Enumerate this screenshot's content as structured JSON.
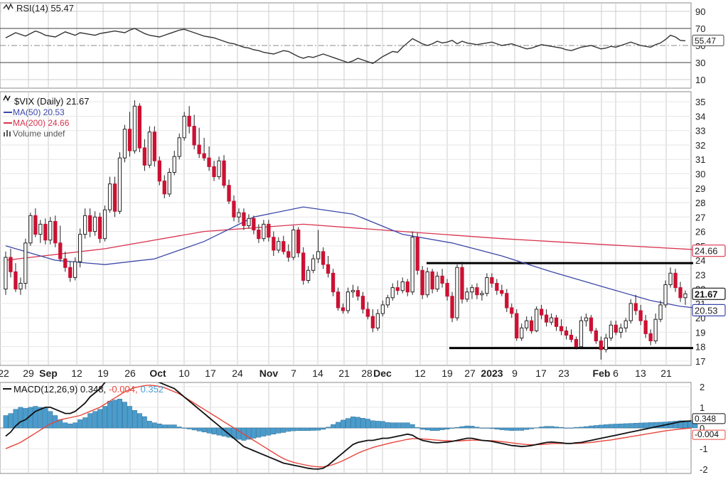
{
  "colors": {
    "up": "#ffffff",
    "down": "#cc1133",
    "ma50": "#3b47a8",
    "ma200": "#d9334f",
    "rsi": "#333333",
    "macd": "#111111",
    "signal": "#e8453c",
    "hist": "#4a9ccc",
    "grid": "#cccccc"
  },
  "rsi_panel": {
    "label": "RSI(14) 55.47",
    "last_label": "55.47",
    "ticks": [
      "90",
      "70",
      "50",
      "30",
      "10"
    ]
  },
  "price_panel": {
    "title": "$VIX (Daily) 21.67",
    "legend": [
      {
        "key": "ma50",
        "label": "MA(50) 20.53",
        "color": "#3b47a8"
      },
      {
        "key": "ma200",
        "label": "MA(200) 24.66",
        "color": "#d9334f"
      },
      {
        "key": "vol",
        "label": "Volume undef",
        "color": "#555555"
      }
    ],
    "last_price_label": "21.67",
    "ma200_label": "24.66",
    "ma50_label": "20.53",
    "ticks": [
      "35",
      "34",
      "33",
      "32",
      "31",
      "30",
      "29",
      "28",
      "27",
      "26",
      "25",
      "24",
      "23",
      "22",
      "21",
      "20",
      "19",
      "18",
      "17"
    ]
  },
  "macd_panel": {
    "label_prefix": "MACD(12,26,9) 0.348,",
    "label_signal": "-0.004,",
    "label_hist": "0.352",
    "last_macd_label": "0.348",
    "last_signal_label": "-0.004",
    "ticks": [
      "2",
      "1",
      "0",
      "-1",
      "-2"
    ]
  },
  "x_axis": {
    "labels": [
      {
        "text": "22",
        "bold": false
      },
      {
        "text": "29",
        "bold": false
      },
      {
        "text": "Sep",
        "bold": true
      },
      {
        "text": "12",
        "bold": false
      },
      {
        "text": "19",
        "bold": false
      },
      {
        "text": "26",
        "bold": false
      },
      {
        "text": "Oct",
        "bold": true
      },
      {
        "text": "10",
        "bold": false
      },
      {
        "text": "17",
        "bold": false
      },
      {
        "text": "24",
        "bold": false
      },
      {
        "text": "Nov",
        "bold": true
      },
      {
        "text": "7",
        "bold": false
      },
      {
        "text": "14",
        "bold": false
      },
      {
        "text": "21",
        "bold": false
      },
      {
        "text": "28",
        "bold": false
      },
      {
        "text": "Dec",
        "bold": true
      },
      {
        "text": "12",
        "bold": false
      },
      {
        "text": "19",
        "bold": false
      },
      {
        "text": "27",
        "bold": false
      },
      {
        "text": "2023",
        "bold": true
      },
      {
        "text": "9",
        "bold": false
      },
      {
        "text": "17",
        "bold": false
      },
      {
        "text": "23",
        "bold": false
      },
      {
        "text": "Feb",
        "bold": true
      },
      {
        "text": "6",
        "bold": false
      },
      {
        "text": "13",
        "bold": false
      },
      {
        "text": "21",
        "bold": false
      }
    ]
  },
  "chart_data": {
    "type": "candlestick",
    "title": "$VIX (Daily) 21.67",
    "y_range_price": [
      16.7,
      35.7
    ],
    "price_support_resistance": [
      {
        "level": 23.8,
        "from_date": "Dec 13",
        "to_date": "Feb 24"
      },
      {
        "level": 17.9,
        "from_date": "Dec 22",
        "to_date": "Feb 24"
      }
    ],
    "ohlc": [
      [
        22.0,
        24.6,
        21.6,
        24.2
      ],
      [
        24.2,
        24.8,
        22.8,
        23.2
      ],
      [
        23.2,
        23.8,
        21.8,
        22.0
      ],
      [
        22.0,
        22.8,
        21.6,
        22.4
      ],
      [
        22.4,
        25.5,
        22.0,
        25.2
      ],
      [
        25.2,
        27.3,
        25.0,
        27.1
      ],
      [
        27.1,
        27.6,
        25.6,
        25.8
      ],
      [
        25.8,
        26.8,
        25.2,
        26.5
      ],
      [
        26.5,
        26.9,
        25.1,
        25.4
      ],
      [
        25.4,
        27.0,
        25.1,
        26.7
      ],
      [
        26.7,
        27.1,
        24.9,
        25.2
      ],
      [
        25.2,
        26.4,
        23.9,
        24.1
      ],
      [
        24.1,
        24.6,
        23.2,
        23.5
      ],
      [
        23.5,
        23.9,
        22.5,
        22.8
      ],
      [
        22.8,
        24.2,
        22.6,
        23.9
      ],
      [
        23.9,
        26.2,
        23.5,
        25.8
      ],
      [
        25.8,
        27.6,
        25.5,
        27.1
      ],
      [
        27.1,
        27.6,
        25.6,
        26.0
      ],
      [
        26.0,
        27.4,
        25.7,
        27.0
      ],
      [
        27.0,
        27.3,
        25.2,
        25.5
      ],
      [
        25.5,
        27.8,
        25.3,
        27.5
      ],
      [
        27.5,
        29.8,
        27.3,
        29.3
      ],
      [
        29.3,
        29.8,
        27.0,
        27.4
      ],
      [
        27.4,
        31.5,
        27.2,
        31.1
      ],
      [
        31.1,
        33.4,
        30.8,
        33.1
      ],
      [
        33.1,
        34.3,
        31.2,
        31.6
      ],
      [
        31.6,
        35.1,
        31.4,
        34.7
      ],
      [
        34.7,
        34.9,
        31.5,
        31.8
      ],
      [
        31.8,
        32.4,
        30.2,
        30.6
      ],
      [
        30.6,
        33.3,
        30.4,
        32.9
      ],
      [
        32.9,
        33.3,
        30.5,
        30.9
      ],
      [
        30.9,
        31.2,
        29.2,
        29.5
      ],
      [
        29.5,
        29.9,
        28.3,
        28.6
      ],
      [
        28.6,
        30.4,
        28.4,
        30.1
      ],
      [
        30.1,
        31.6,
        29.9,
        31.2
      ],
      [
        31.2,
        32.8,
        31.0,
        32.5
      ],
      [
        32.5,
        34.3,
        32.3,
        34.0
      ],
      [
        34.0,
        34.7,
        32.8,
        33.3
      ],
      [
        33.3,
        34.1,
        31.7,
        32.0
      ],
      [
        32.0,
        33.2,
        31.1,
        31.4
      ],
      [
        31.4,
        32.5,
        30.9,
        31.1
      ],
      [
        31.1,
        31.9,
        30.2,
        30.5
      ],
      [
        30.5,
        30.9,
        29.5,
        29.8
      ],
      [
        29.8,
        31.2,
        29.6,
        30.9
      ],
      [
        30.9,
        31.3,
        29.0,
        29.2
      ],
      [
        29.2,
        29.6,
        27.9,
        28.1
      ],
      [
        28.1,
        28.5,
        26.7,
        27.0
      ],
      [
        27.0,
        27.6,
        26.6,
        27.3
      ],
      [
        27.3,
        27.6,
        26.1,
        26.4
      ],
      [
        26.4,
        27.2,
        26.2,
        26.9
      ],
      [
        26.9,
        27.1,
        25.8,
        26.1
      ],
      [
        26.1,
        26.5,
        25.2,
        25.5
      ],
      [
        25.5,
        26.8,
        25.3,
        26.5
      ],
      [
        26.5,
        26.8,
        25.3,
        25.6
      ],
      [
        25.6,
        26.0,
        24.3,
        24.7
      ],
      [
        24.7,
        25.6,
        24.5,
        25.3
      ],
      [
        25.3,
        25.7,
        24.4,
        24.6
      ],
      [
        24.6,
        25.1,
        23.9,
        24.2
      ],
      [
        24.2,
        26.4,
        24.0,
        26.1
      ],
      [
        26.1,
        26.3,
        24.2,
        24.5
      ],
      [
        24.5,
        24.9,
        22.3,
        22.6
      ],
      [
        22.6,
        23.6,
        22.4,
        23.3
      ],
      [
        23.3,
        24.4,
        23.1,
        24.1
      ],
      [
        24.1,
        26.1,
        23.8,
        24.6
      ],
      [
        24.6,
        24.9,
        23.4,
        23.7
      ],
      [
        23.7,
        24.3,
        22.8,
        23.1
      ],
      [
        23.1,
        23.4,
        21.5,
        21.8
      ],
      [
        21.8,
        22.1,
        20.5,
        20.7
      ],
      [
        20.7,
        21.0,
        20.3,
        20.5
      ],
      [
        20.5,
        22.1,
        20.3,
        21.8
      ],
      [
        21.8,
        22.3,
        21.4,
        21.9
      ],
      [
        21.9,
        22.2,
        21.2,
        21.5
      ],
      [
        21.5,
        21.8,
        20.3,
        20.6
      ],
      [
        20.6,
        21.1,
        19.9,
        20.1
      ],
      [
        20.1,
        20.6,
        19.0,
        19.3
      ],
      [
        19.3,
        20.6,
        19.1,
        20.3
      ],
      [
        20.3,
        21.2,
        20.1,
        20.9
      ],
      [
        20.9,
        21.6,
        20.7,
        21.4
      ],
      [
        21.4,
        22.4,
        21.2,
        22.1
      ],
      [
        22.1,
        22.6,
        21.6,
        21.9
      ],
      [
        21.9,
        22.8,
        21.7,
        22.5
      ],
      [
        22.5,
        22.7,
        21.5,
        21.8
      ],
      [
        21.8,
        26.0,
        21.6,
        25.6
      ],
      [
        25.6,
        25.9,
        23.0,
        23.3
      ],
      [
        23.3,
        23.6,
        21.3,
        21.6
      ],
      [
        21.6,
        23.5,
        21.4,
        23.2
      ],
      [
        23.2,
        23.4,
        21.7,
        22.0
      ],
      [
        22.0,
        23.2,
        21.8,
        22.9
      ],
      [
        22.9,
        23.4,
        22.1,
        22.4
      ],
      [
        22.4,
        22.7,
        21.2,
        21.5
      ],
      [
        21.5,
        21.8,
        19.7,
        20.0
      ],
      [
        20.0,
        23.7,
        19.8,
        23.5
      ],
      [
        23.5,
        23.9,
        21.0,
        21.3
      ],
      [
        21.3,
        22.1,
        21.1,
        21.8
      ],
      [
        21.8,
        22.3,
        21.3,
        22.1
      ],
      [
        22.1,
        22.4,
        21.3,
        21.6
      ],
      [
        21.6,
        21.9,
        21.2,
        21.7
      ],
      [
        21.7,
        23.1,
        21.5,
        22.8
      ],
      [
        22.8,
        23.1,
        22.1,
        22.4
      ],
      [
        22.4,
        22.7,
        21.6,
        21.9
      ],
      [
        21.9,
        22.3,
        21.5,
        21.7
      ],
      [
        21.7,
        22.0,
        20.4,
        20.7
      ],
      [
        20.7,
        21.0,
        20.0,
        20.3
      ],
      [
        20.3,
        20.6,
        18.4,
        18.6
      ],
      [
        18.6,
        19.6,
        18.4,
        19.3
      ],
      [
        19.3,
        20.1,
        19.1,
        19.8
      ],
      [
        19.8,
        20.1,
        18.9,
        19.1
      ],
      [
        19.1,
        20.8,
        19.0,
        20.6
      ],
      [
        20.6,
        20.9,
        19.9,
        20.2
      ],
      [
        20.2,
        20.6,
        19.4,
        19.7
      ],
      [
        19.7,
        20.3,
        19.5,
        20.0
      ],
      [
        20.0,
        20.2,
        19.1,
        19.4
      ],
      [
        19.4,
        19.9,
        18.8,
        19.1
      ],
      [
        19.1,
        19.4,
        18.5,
        18.8
      ],
      [
        18.8,
        19.2,
        18.3,
        18.5
      ],
      [
        18.5,
        18.7,
        17.8,
        18.0
      ],
      [
        18.0,
        20.1,
        17.9,
        19.8
      ],
      [
        19.8,
        20.3,
        19.4,
        20.0
      ],
      [
        20.0,
        20.2,
        18.9,
        19.1
      ],
      [
        19.1,
        19.3,
        18.2,
        18.4
      ],
      [
        18.4,
        18.7,
        17.1,
        17.8
      ],
      [
        17.8,
        18.9,
        17.6,
        18.6
      ],
      [
        18.6,
        19.8,
        18.4,
        19.5
      ],
      [
        19.5,
        19.8,
        18.8,
        19.0
      ],
      [
        19.0,
        19.6,
        18.6,
        19.3
      ],
      [
        19.3,
        20.0,
        19.0,
        19.8
      ],
      [
        19.8,
        21.3,
        19.6,
        21.0
      ],
      [
        21.0,
        21.6,
        20.2,
        20.5
      ],
      [
        20.5,
        20.9,
        19.5,
        19.8
      ],
      [
        19.8,
        20.2,
        18.6,
        18.9
      ],
      [
        18.9,
        19.2,
        18.1,
        18.4
      ],
      [
        18.4,
        20.3,
        18.2,
        19.9
      ],
      [
        19.9,
        21.2,
        19.7,
        20.9
      ],
      [
        20.9,
        22.6,
        20.7,
        22.3
      ],
      [
        22.3,
        23.5,
        22.1,
        23.1
      ],
      [
        23.1,
        23.4,
        21.8,
        22.1
      ],
      [
        22.1,
        22.5,
        21.1,
        21.4
      ],
      [
        21.4,
        21.9,
        20.9,
        21.67
      ]
    ],
    "ma50": [
      [
        0,
        25.0
      ],
      [
        10,
        24.0
      ],
      [
        20,
        23.7
      ],
      [
        30,
        24.1
      ],
      [
        40,
        25.3
      ],
      [
        50,
        27.0
      ],
      [
        60,
        27.7
      ],
      [
        70,
        27.2
      ],
      [
        80,
        25.8
      ],
      [
        90,
        25.2
      ],
      [
        100,
        24.3
      ],
      [
        110,
        23.2
      ],
      [
        120,
        22.2
      ],
      [
        130,
        21.2
      ],
      [
        136,
        20.8
      ],
      [
        143,
        20.53
      ]
    ],
    "ma200": [
      [
        0,
        24.0
      ],
      [
        20,
        24.8
      ],
      [
        40,
        26.0
      ],
      [
        60,
        26.5
      ],
      [
        80,
        26.0
      ],
      [
        100,
        25.5
      ],
      [
        120,
        25.1
      ],
      [
        143,
        24.66
      ]
    ],
    "rsi": [
      59,
      62,
      65,
      63,
      61,
      64,
      67,
      65,
      62,
      61,
      60,
      63,
      66,
      64,
      62,
      65,
      64,
      63,
      62,
      64,
      65,
      66,
      67,
      66,
      65,
      68,
      70,
      67,
      64,
      62,
      61,
      60,
      62,
      64,
      66,
      68,
      69,
      67,
      65,
      63,
      61,
      60,
      59,
      57,
      55,
      53,
      52,
      50,
      48,
      47,
      45,
      44,
      42,
      41,
      40,
      42,
      44,
      43,
      40,
      37,
      35,
      37,
      36,
      38,
      40,
      38,
      36,
      34,
      32,
      30,
      32,
      35,
      33,
      31,
      29,
      33,
      37,
      40,
      43,
      42,
      48,
      53,
      58,
      55,
      52,
      50,
      52,
      55,
      53,
      54,
      56,
      52,
      55,
      53,
      52,
      51,
      52,
      53,
      54,
      52,
      50,
      51,
      52,
      50,
      48,
      46,
      47,
      49,
      51,
      50,
      49,
      48,
      47,
      45,
      44,
      46,
      48,
      49,
      50,
      48,
      46,
      47,
      49,
      48,
      50,
      52,
      54,
      52,
      50,
      49,
      48,
      51,
      53,
      57,
      62,
      60,
      56,
      55.47
    ],
    "macd": [
      -0.4,
      -0.2,
      0.1,
      0.3,
      0.4,
      0.6,
      0.8,
      0.9,
      1.0,
      1.0,
      0.9,
      0.8,
      0.7,
      0.7,
      0.8,
      1.0,
      1.2,
      1.5,
      1.7,
      1.9,
      2.2,
      2.6,
      2.8,
      3.0,
      3.0,
      2.9,
      2.8,
      2.7,
      2.6,
      2.4,
      2.3,
      2.2,
      2.1,
      2.0,
      1.9,
      1.7,
      1.5,
      1.3,
      1.1,
      0.9,
      0.7,
      0.5,
      0.3,
      0.1,
      -0.1,
      -0.3,
      -0.5,
      -0.7,
      -0.9,
      -1.0,
      -1.1,
      -1.2,
      -1.3,
      -1.4,
      -1.5,
      -1.6,
      -1.7,
      -1.75,
      -1.8,
      -1.85,
      -1.9,
      -1.95,
      -1.98,
      -1.99,
      -1.95,
      -1.8,
      -1.6,
      -1.4,
      -1.2,
      -1.0,
      -0.8,
      -0.7,
      -0.65,
      -0.6,
      -0.6,
      -0.55,
      -0.5,
      -0.5,
      -0.45,
      -0.4,
      -0.35,
      -0.3,
      -0.35,
      -0.5,
      -0.6,
      -0.65,
      -0.7,
      -0.72,
      -0.7,
      -0.68,
      -0.65,
      -0.6,
      -0.55,
      -0.5,
      -0.5,
      -0.55,
      -0.6,
      -0.62,
      -0.65,
      -0.7,
      -0.75,
      -0.8,
      -0.85,
      -0.87,
      -0.9,
      -0.88,
      -0.85,
      -0.8,
      -0.75,
      -0.7,
      -0.68,
      -0.7,
      -0.72,
      -0.75,
      -0.75,
      -0.72,
      -0.7,
      -0.65,
      -0.6,
      -0.55,
      -0.5,
      -0.45,
      -0.4,
      -0.35,
      -0.3,
      -0.25,
      -0.2,
      -0.15,
      -0.1,
      -0.05,
      0.0,
      0.05,
      0.1,
      0.15,
      0.2,
      0.25,
      0.3,
      0.32,
      0.34,
      0.35,
      0.348
    ],
    "signal": [
      -1.0,
      -0.9,
      -0.8,
      -0.7,
      -0.55,
      -0.4,
      -0.25,
      -0.1,
      0.05,
      0.2,
      0.3,
      0.4,
      0.45,
      0.5,
      0.55,
      0.6,
      0.7,
      0.8,
      0.9,
      1.0,
      1.15,
      1.3,
      1.45,
      1.6,
      1.75,
      1.85,
      1.95,
      2.0,
      2.05,
      2.07,
      2.05,
      2.0,
      1.95,
      1.85,
      1.75,
      1.65,
      1.5,
      1.35,
      1.2,
      1.05,
      0.9,
      0.75,
      0.6,
      0.45,
      0.3,
      0.15,
      0.0,
      -0.15,
      -0.3,
      -0.45,
      -0.6,
      -0.75,
      -0.9,
      -1.05,
      -1.2,
      -1.35,
      -1.48,
      -1.58,
      -1.66,
      -1.72,
      -1.77,
      -1.82,
      -1.86,
      -1.88,
      -1.88,
      -1.84,
      -1.77,
      -1.68,
      -1.58,
      -1.46,
      -1.34,
      -1.22,
      -1.12,
      -1.03,
      -0.95,
      -0.88,
      -0.82,
      -0.76,
      -0.7,
      -0.65,
      -0.6,
      -0.55,
      -0.52,
      -0.52,
      -0.53,
      -0.55,
      -0.57,
      -0.59,
      -0.61,
      -0.62,
      -0.63,
      -0.63,
      -0.62,
      -0.6,
      -0.59,
      -0.59,
      -0.6,
      -0.61,
      -0.62,
      -0.64,
      -0.66,
      -0.69,
      -0.72,
      -0.75,
      -0.78,
      -0.8,
      -0.81,
      -0.81,
      -0.8,
      -0.78,
      -0.76,
      -0.75,
      -0.75,
      -0.75,
      -0.75,
      -0.75,
      -0.74,
      -0.72,
      -0.7,
      -0.67,
      -0.64,
      -0.61,
      -0.58,
      -0.54,
      -0.5,
      -0.46,
      -0.42,
      -0.38,
      -0.34,
      -0.3,
      -0.26,
      -0.22,
      -0.18,
      -0.14,
      -0.11,
      -0.08,
      -0.05,
      -0.03,
      -0.01,
      -0.004
    ]
  }
}
